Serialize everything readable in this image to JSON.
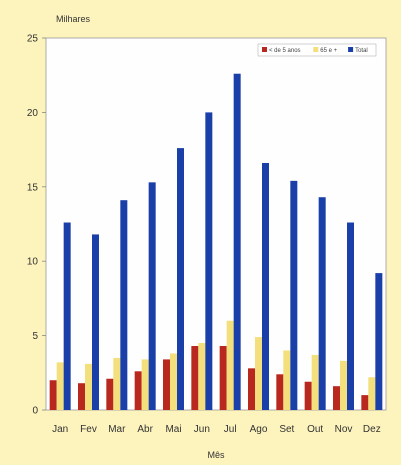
{
  "chart_data": {
    "type": "bar",
    "ylabel": "Milhares",
    "xlabel": "Mês",
    "ylim": [
      0,
      25
    ],
    "yticks": [
      0,
      5,
      10,
      15,
      20,
      25
    ],
    "grid": false,
    "legend_position": "top-right",
    "categories": [
      "Jan",
      "Fev",
      "Mar",
      "Abr",
      "Mai",
      "Jun",
      "Jul",
      "Ago",
      "Set",
      "Out",
      "Nov",
      "Dez"
    ],
    "series": [
      {
        "name": "< de 5 anos",
        "color": "#b8281e",
        "values": [
          2.0,
          1.8,
          2.1,
          2.6,
          3.4,
          4.3,
          4.3,
          2.8,
          2.4,
          1.9,
          1.6,
          1.0
        ]
      },
      {
        "name": "65 e +",
        "color": "#f3df7b",
        "values": [
          3.2,
          3.1,
          3.5,
          3.4,
          3.8,
          4.5,
          6.0,
          4.9,
          4.0,
          3.7,
          3.3,
          2.2
        ]
      },
      {
        "name": "Total",
        "color": "#1b3fa8",
        "values": [
          12.6,
          11.8,
          14.1,
          15.3,
          17.6,
          20.0,
          22.6,
          16.6,
          15.4,
          14.3,
          12.6,
          9.2
        ]
      }
    ]
  }
}
